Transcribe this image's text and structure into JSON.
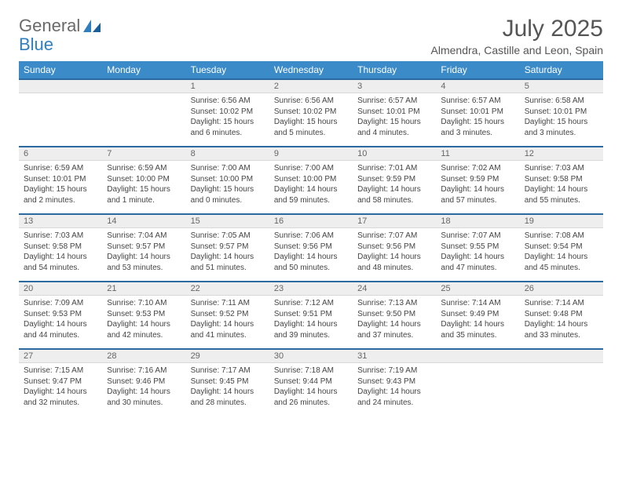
{
  "logo": {
    "text1": "General",
    "text2": "Blue",
    "color_general": "#6a6a6a",
    "color_blue": "#2f7ec0"
  },
  "title": "July 2025",
  "location": "Almendra, Castille and Leon, Spain",
  "colors": {
    "header_bg": "#3b8bc8",
    "header_text": "#ffffff",
    "row_border": "#2b6aa1",
    "daynum_bg": "#eeeeee",
    "body_bg": "#ffffff",
    "text": "#444444"
  },
  "weekdays": [
    "Sunday",
    "Monday",
    "Tuesday",
    "Wednesday",
    "Thursday",
    "Friday",
    "Saturday"
  ],
  "leading_blanks": 2,
  "days": [
    {
      "n": 1,
      "sunrise": "6:56 AM",
      "sunset": "10:02 PM",
      "daylight": "15 hours and 6 minutes."
    },
    {
      "n": 2,
      "sunrise": "6:56 AM",
      "sunset": "10:02 PM",
      "daylight": "15 hours and 5 minutes."
    },
    {
      "n": 3,
      "sunrise": "6:57 AM",
      "sunset": "10:01 PM",
      "daylight": "15 hours and 4 minutes."
    },
    {
      "n": 4,
      "sunrise": "6:57 AM",
      "sunset": "10:01 PM",
      "daylight": "15 hours and 3 minutes."
    },
    {
      "n": 5,
      "sunrise": "6:58 AM",
      "sunset": "10:01 PM",
      "daylight": "15 hours and 3 minutes."
    },
    {
      "n": 6,
      "sunrise": "6:59 AM",
      "sunset": "10:01 PM",
      "daylight": "15 hours and 2 minutes."
    },
    {
      "n": 7,
      "sunrise": "6:59 AM",
      "sunset": "10:00 PM",
      "daylight": "15 hours and 1 minute."
    },
    {
      "n": 8,
      "sunrise": "7:00 AM",
      "sunset": "10:00 PM",
      "daylight": "15 hours and 0 minutes."
    },
    {
      "n": 9,
      "sunrise": "7:00 AM",
      "sunset": "10:00 PM",
      "daylight": "14 hours and 59 minutes."
    },
    {
      "n": 10,
      "sunrise": "7:01 AM",
      "sunset": "9:59 PM",
      "daylight": "14 hours and 58 minutes."
    },
    {
      "n": 11,
      "sunrise": "7:02 AM",
      "sunset": "9:59 PM",
      "daylight": "14 hours and 57 minutes."
    },
    {
      "n": 12,
      "sunrise": "7:03 AM",
      "sunset": "9:58 PM",
      "daylight": "14 hours and 55 minutes."
    },
    {
      "n": 13,
      "sunrise": "7:03 AM",
      "sunset": "9:58 PM",
      "daylight": "14 hours and 54 minutes."
    },
    {
      "n": 14,
      "sunrise": "7:04 AM",
      "sunset": "9:57 PM",
      "daylight": "14 hours and 53 minutes."
    },
    {
      "n": 15,
      "sunrise": "7:05 AM",
      "sunset": "9:57 PM",
      "daylight": "14 hours and 51 minutes."
    },
    {
      "n": 16,
      "sunrise": "7:06 AM",
      "sunset": "9:56 PM",
      "daylight": "14 hours and 50 minutes."
    },
    {
      "n": 17,
      "sunrise": "7:07 AM",
      "sunset": "9:56 PM",
      "daylight": "14 hours and 48 minutes."
    },
    {
      "n": 18,
      "sunrise": "7:07 AM",
      "sunset": "9:55 PM",
      "daylight": "14 hours and 47 minutes."
    },
    {
      "n": 19,
      "sunrise": "7:08 AM",
      "sunset": "9:54 PM",
      "daylight": "14 hours and 45 minutes."
    },
    {
      "n": 20,
      "sunrise": "7:09 AM",
      "sunset": "9:53 PM",
      "daylight": "14 hours and 44 minutes."
    },
    {
      "n": 21,
      "sunrise": "7:10 AM",
      "sunset": "9:53 PM",
      "daylight": "14 hours and 42 minutes."
    },
    {
      "n": 22,
      "sunrise": "7:11 AM",
      "sunset": "9:52 PM",
      "daylight": "14 hours and 41 minutes."
    },
    {
      "n": 23,
      "sunrise": "7:12 AM",
      "sunset": "9:51 PM",
      "daylight": "14 hours and 39 minutes."
    },
    {
      "n": 24,
      "sunrise": "7:13 AM",
      "sunset": "9:50 PM",
      "daylight": "14 hours and 37 minutes."
    },
    {
      "n": 25,
      "sunrise": "7:14 AM",
      "sunset": "9:49 PM",
      "daylight": "14 hours and 35 minutes."
    },
    {
      "n": 26,
      "sunrise": "7:14 AM",
      "sunset": "9:48 PM",
      "daylight": "14 hours and 33 minutes."
    },
    {
      "n": 27,
      "sunrise": "7:15 AM",
      "sunset": "9:47 PM",
      "daylight": "14 hours and 32 minutes."
    },
    {
      "n": 28,
      "sunrise": "7:16 AM",
      "sunset": "9:46 PM",
      "daylight": "14 hours and 30 minutes."
    },
    {
      "n": 29,
      "sunrise": "7:17 AM",
      "sunset": "9:45 PM",
      "daylight": "14 hours and 28 minutes."
    },
    {
      "n": 30,
      "sunrise": "7:18 AM",
      "sunset": "9:44 PM",
      "daylight": "14 hours and 26 minutes."
    },
    {
      "n": 31,
      "sunrise": "7:19 AM",
      "sunset": "9:43 PM",
      "daylight": "14 hours and 24 minutes."
    }
  ],
  "labels": {
    "sunrise": "Sunrise:",
    "sunset": "Sunset:",
    "daylight": "Daylight:"
  }
}
